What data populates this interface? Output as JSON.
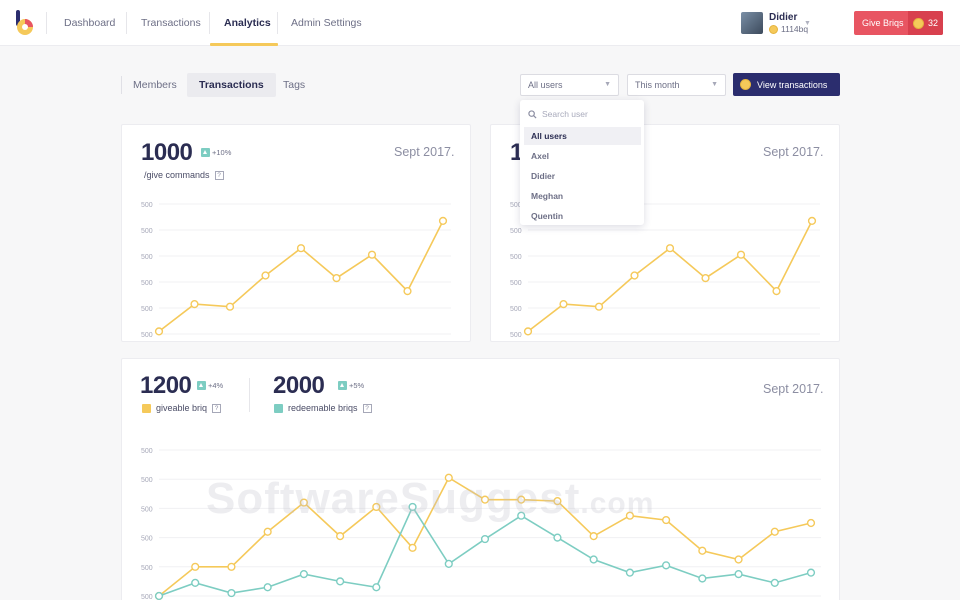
{
  "header": {
    "nav": [
      {
        "label": "Dashboard"
      },
      {
        "label": "Transactions"
      },
      {
        "label": "Analytics",
        "active": true
      },
      {
        "label": "Admin Settings"
      }
    ],
    "user": {
      "name": "Didier",
      "balance": "1114bq"
    },
    "give_button": {
      "label": "Give Briqs",
      "count": "32"
    }
  },
  "subnav": {
    "tabs": [
      {
        "label": "Members"
      },
      {
        "label": "Transactions",
        "active": true
      },
      {
        "label": "Tags"
      }
    ],
    "user_filter": "All users",
    "period_filter": "This month",
    "view_button": "View transactions"
  },
  "dropdown": {
    "search_placeholder": "Search user",
    "items": [
      {
        "label": "All users",
        "active": true
      },
      {
        "label": "Axel"
      },
      {
        "label": "Didier"
      },
      {
        "label": "Meghan"
      },
      {
        "label": "Quentin"
      }
    ]
  },
  "cards": {
    "left": {
      "value": "1000",
      "change": "+10%",
      "label": "/give commands",
      "help": "?",
      "date": "Sept 2017."
    },
    "right": {
      "value": "1",
      "date": "Sept 2017."
    },
    "bottom": {
      "metrics": [
        {
          "value": "1200",
          "change": "+4%",
          "label": "giveable briq",
          "help": "?",
          "color": "#f5c95a"
        },
        {
          "value": "2000",
          "change": "+5%",
          "label": "redeemable briqs",
          "help": "?",
          "color": "#7dcdc2"
        }
      ],
      "date": "Sept 2017."
    }
  },
  "watermark": {
    "text": "SoftwareSuggest",
    "suffix": ".com"
  },
  "colors": {
    "yellow": "#f5c95a",
    "teal": "#7dcdc2",
    "navy": "#2b2d6e",
    "red": "#e85562"
  },
  "chart_data": [
    {
      "type": "line",
      "id": "left-chart",
      "y_tick_labels": [
        "500",
        "500",
        "500",
        "500",
        "500",
        "500"
      ],
      "series": [
        {
          "color": "#f5c95a",
          "values": [
            0.02,
            0.23,
            0.21,
            0.45,
            0.66,
            0.43,
            0.61,
            0.33,
            0.87
          ]
        }
      ]
    },
    {
      "type": "line",
      "id": "right-chart",
      "y_tick_labels": [
        "500",
        "500",
        "500",
        "500",
        "500",
        "500"
      ],
      "series": [
        {
          "color": "#f5c95a",
          "values": [
            0.02,
            0.23,
            0.21,
            0.45,
            0.66,
            0.43,
            0.61,
            0.33,
            0.87
          ]
        }
      ]
    },
    {
      "type": "line",
      "id": "bottom-chart",
      "y_tick_labels": [
        "500",
        "500",
        "500",
        "500",
        "500",
        "500"
      ],
      "series": [
        {
          "color": "#f5c95a",
          "values": [
            0.0,
            0.2,
            0.2,
            0.44,
            0.64,
            0.41,
            0.61,
            0.33,
            0.81,
            0.66,
            0.66,
            0.65,
            0.41,
            0.55,
            0.52,
            0.31,
            0.25,
            0.44,
            0.5
          ]
        },
        {
          "color": "#7dcdc2",
          "values": [
            0.0,
            0.09,
            0.02,
            0.06,
            0.15,
            0.1,
            0.06,
            0.61,
            0.22,
            0.39,
            0.55,
            0.4,
            0.25,
            0.16,
            0.21,
            0.12,
            0.15,
            0.09,
            0.16
          ]
        }
      ]
    }
  ]
}
